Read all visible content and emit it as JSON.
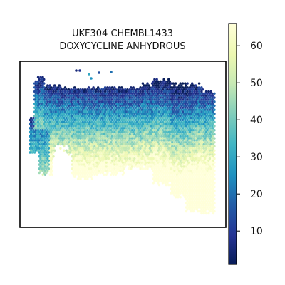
{
  "chart_data": {
    "type": "scatter",
    "title_lines": [
      "UKF304 CHEMBL1433",
      "DOXYCYCLINE ANHYDROUS"
    ],
    "xlabel": "",
    "ylabel": "",
    "colorbar": {
      "cmap": "YlGnBu_r",
      "range": [
        1,
        66
      ],
      "ticks": [
        10,
        20,
        30,
        40,
        50,
        60
      ]
    },
    "tissue_layout": {
      "rows": 63,
      "cols": 88,
      "description_note": ""
    },
    "spot_value_pattern": [
      {
        "region": "top-band",
        "value_range": [
          2,
          18
        ]
      },
      {
        "region": "upper-middle",
        "value_range": [
          12,
          30
        ]
      },
      {
        "region": "middle",
        "value_range": [
          25,
          45
        ]
      },
      {
        "region": "lower",
        "value_range": [
          40,
          66
        ]
      }
    ]
  },
  "colors": {
    "frame": "#000000",
    "background": "#ffffff"
  }
}
